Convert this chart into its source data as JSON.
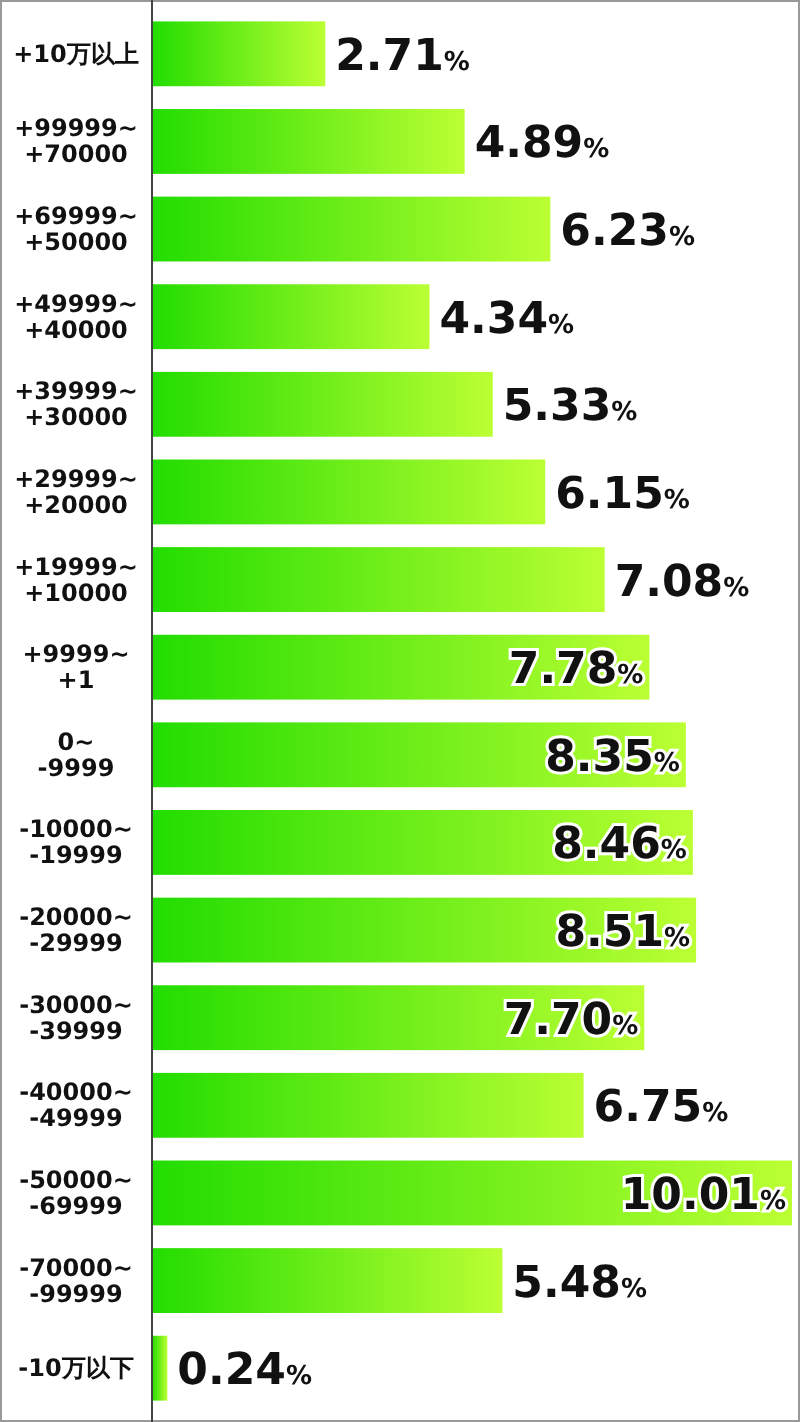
{
  "chart_data": {
    "type": "bar",
    "orientation": "horizontal",
    "categories": [
      "+10万以上",
      "+99999~\n+70000",
      "+69999~\n+50000",
      "+49999~\n+40000",
      "+39999~\n+30000",
      "+29999~\n+20000",
      "+19999~\n+10000",
      "+9999~\n+1",
      "0~\n-9999",
      "-10000~\n-19999",
      "-20000~\n-29999",
      "-30000~\n-39999",
      "-40000~\n-49999",
      "-50000~\n-69999",
      "-70000~\n-99999",
      "-10万以下"
    ],
    "values": [
      2.71,
      4.89,
      6.23,
      4.34,
      5.33,
      6.15,
      7.08,
      7.78,
      8.35,
      8.46,
      8.51,
      7.7,
      6.75,
      10.01,
      5.48,
      0.24
    ],
    "value_labels": [
      "2.71%",
      "4.89%",
      "6.23%",
      "4.34%",
      "5.33%",
      "6.15%",
      "7.08%",
      "7.78%",
      "8.35%",
      "8.46%",
      "8.51%",
      "7.70%",
      "6.75%",
      "10.01%",
      "5.48%",
      "0.24%"
    ],
    "color": "#22dd00"
  }
}
